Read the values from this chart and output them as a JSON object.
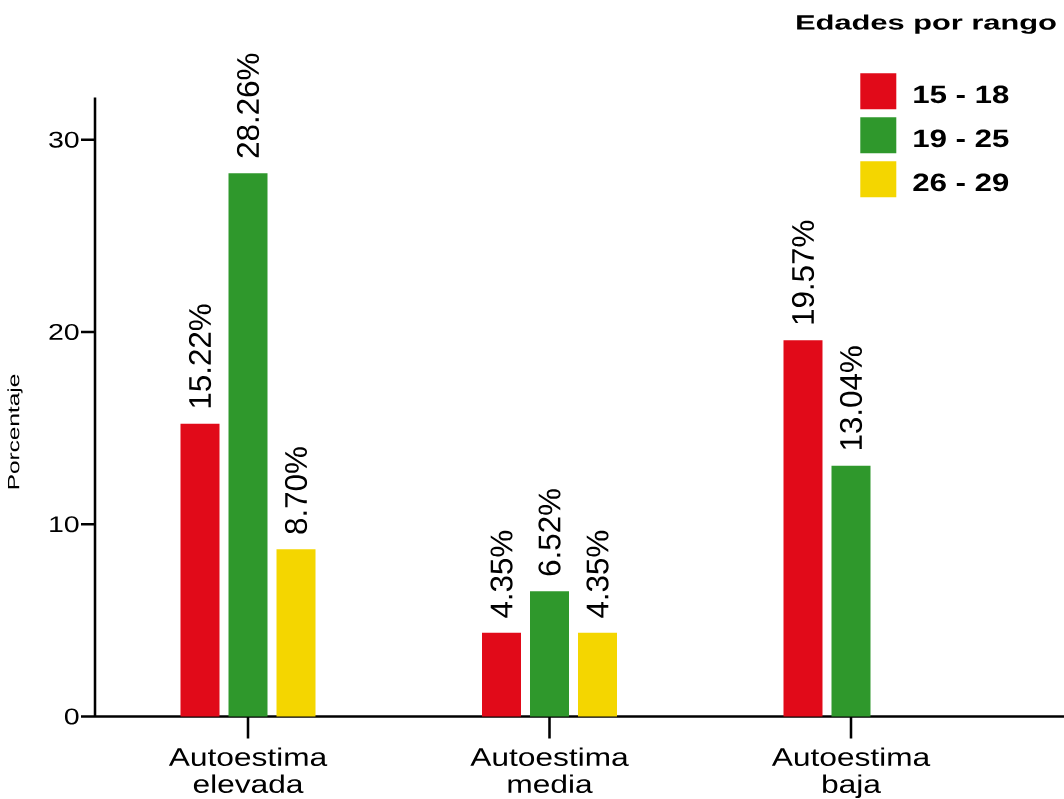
{
  "chart_data": {
    "type": "bar",
    "categories": [
      "Autoestima elevada",
      "Autoestima media",
      "Autoestima baja"
    ],
    "ylabel": "Porcentaje",
    "legend_title": "Edades por rango",
    "legend": "top right",
    "ylim": [
      0,
      32.2
    ],
    "yticks": [
      0,
      10,
      20,
      30
    ],
    "series": [
      {
        "name": "15 - 18",
        "color": "#e10a19",
        "values": [
          15.22,
          4.35,
          19.57
        ],
        "value_labels": [
          "15.22%",
          "4.35%",
          "19.57%"
        ]
      },
      {
        "name": "19 - 25",
        "color": "#2f982c",
        "values": [
          28.26,
          6.52,
          13.04
        ],
        "value_labels": [
          "28.26%",
          "6.52%",
          "13.04%"
        ]
      },
      {
        "name": "26 - 29",
        "color": "#f4d600",
        "values": [
          8.7,
          4.35,
          null
        ],
        "value_labels": [
          "8.70%",
          "4.35%",
          null
        ]
      }
    ]
  }
}
